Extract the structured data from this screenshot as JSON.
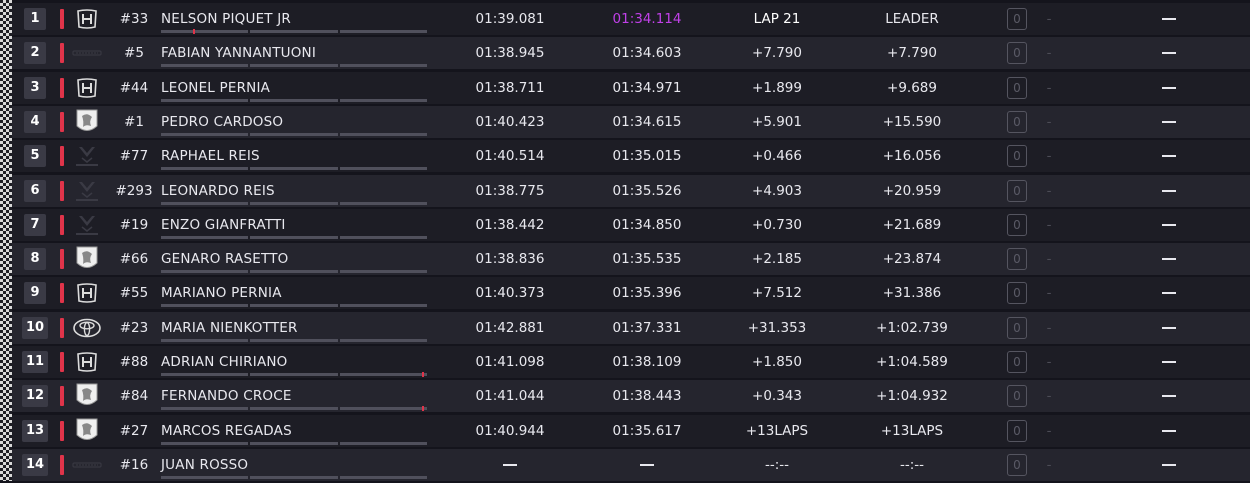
{
  "colors": {
    "accent_red": "#e0344a",
    "fastest_purple": "#c040e8",
    "row_dark": "#1d1d25",
    "row_light": "#25252e"
  },
  "rows": [
    {
      "pos": "1",
      "logo": "honda-logo",
      "num": "#33",
      "name": "NELSON PIQUET JR",
      "last": "01:39.081",
      "best": "01:34.114",
      "best_fastest": true,
      "gap": "LAP 21",
      "interval": "LEADER",
      "pit_count": "0",
      "pit_label": "-",
      "status": "—",
      "progress_marker": 0.12,
      "marker_color": "#e0344a"
    },
    {
      "pos": "2",
      "logo": "renault-wordmark-logo",
      "num": "#5",
      "name": "FABIAN YANNANTUONI",
      "last": "01:38.945",
      "best": "01:34.603",
      "best_fastest": false,
      "gap": "+7.790",
      "interval": "+7.790",
      "pit_count": "0",
      "pit_label": "-",
      "status": "—"
    },
    {
      "pos": "3",
      "logo": "honda-logo",
      "num": "#44",
      "name": "LEONEL PERNIA",
      "last": "01:38.711",
      "best": "01:34.971",
      "best_fastest": false,
      "gap": "+1.899",
      "interval": "+9.689",
      "pit_count": "0",
      "pit_label": "-",
      "status": "—"
    },
    {
      "pos": "4",
      "logo": "peugeot-logo",
      "num": "#1",
      "name": "PEDRO CARDOSO",
      "last": "01:40.423",
      "best": "01:34.615",
      "best_fastest": false,
      "gap": "+5.901",
      "interval": "+15.590",
      "pit_count": "0",
      "pit_label": "-",
      "status": "—"
    },
    {
      "pos": "5",
      "logo": "cupra-logo",
      "num": "#77",
      "name": "RAPHAEL REIS",
      "last": "01:40.514",
      "best": "01:35.015",
      "best_fastest": false,
      "gap": "+0.466",
      "interval": "+16.056",
      "pit_count": "0",
      "pit_label": "-",
      "status": "—"
    },
    {
      "pos": "6",
      "logo": "cupra-logo",
      "num": "#293",
      "name": "LEONARDO REIS",
      "last": "01:38.775",
      "best": "01:35.526",
      "best_fastest": false,
      "gap": "+4.903",
      "interval": "+20.959",
      "pit_count": "0",
      "pit_label": "-",
      "status": "—"
    },
    {
      "pos": "7",
      "logo": "cupra-logo",
      "num": "#19",
      "name": "ENZO GIANFRATTI",
      "last": "01:38.442",
      "best": "01:34.850",
      "best_fastest": false,
      "gap": "+0.730",
      "interval": "+21.689",
      "pit_count": "0",
      "pit_label": "-",
      "status": "—"
    },
    {
      "pos": "8",
      "logo": "peugeot-logo",
      "num": "#66",
      "name": "GENARO RASETTO",
      "last": "01:38.836",
      "best": "01:35.535",
      "best_fastest": false,
      "gap": "+2.185",
      "interval": "+23.874",
      "pit_count": "0",
      "pit_label": "-",
      "status": "—"
    },
    {
      "pos": "9",
      "logo": "honda-logo",
      "num": "#55",
      "name": "MARIANO PERNIA",
      "last": "01:40.373",
      "best": "01:35.396",
      "best_fastest": false,
      "gap": "+7.512",
      "interval": "+31.386",
      "pit_count": "0",
      "pit_label": "-",
      "status": "—"
    },
    {
      "pos": "10",
      "logo": "toyota-logo",
      "num": "#23",
      "name": "MARIA NIENKOTTER",
      "last": "01:42.881",
      "best": "01:37.331",
      "best_fastest": false,
      "gap": "+31.353",
      "interval": "+1:02.739",
      "pit_count": "0",
      "pit_label": "-",
      "status": "—"
    },
    {
      "pos": "11",
      "logo": "honda-logo",
      "num": "#88",
      "name": "ADRIAN CHIRIANO",
      "last": "01:41.098",
      "best": "01:38.109",
      "best_fastest": false,
      "gap": "+1.850",
      "interval": "+1:04.589",
      "pit_count": "0",
      "pit_label": "-",
      "status": "—",
      "progress_marker": 0.99,
      "marker_color": "#e0344a"
    },
    {
      "pos": "12",
      "logo": "peugeot-logo",
      "num": "#84",
      "name": "FERNANDO CROCE",
      "last": "01:41.044",
      "best": "01:38.443",
      "best_fastest": false,
      "gap": "+0.343",
      "interval": "+1:04.932",
      "pit_count": "0",
      "pit_label": "-",
      "status": "—",
      "progress_marker": 0.99,
      "marker_color": "#e0344a"
    },
    {
      "pos": "13",
      "logo": "peugeot-logo",
      "num": "#27",
      "name": "MARCOS REGADAS",
      "last": "01:40.944",
      "best": "01:35.617",
      "best_fastest": false,
      "gap": "+13LAPS",
      "interval": "+13LAPS",
      "pit_count": "0",
      "pit_label": "-",
      "status": "—"
    },
    {
      "pos": "14",
      "logo": "renault-wordmark-logo",
      "num": "#16",
      "name": "JUAN ROSSO",
      "last": "—",
      "best": "—",
      "best_fastest": false,
      "gap": "--:--",
      "interval": "--:--",
      "pit_count": "0",
      "pit_label": "-",
      "status": "—"
    }
  ]
}
